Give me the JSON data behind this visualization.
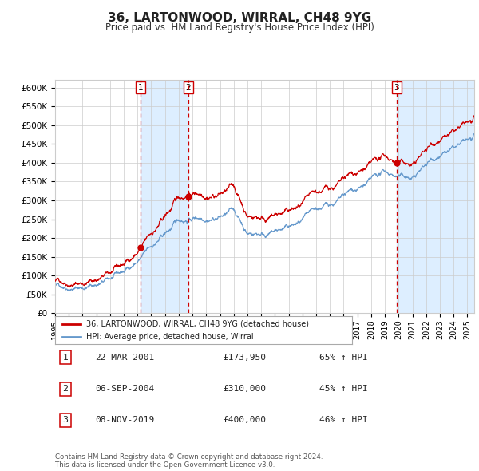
{
  "title": "36, LARTONWOOD, WIRRAL, CH48 9YG",
  "subtitle": "Price paid vs. HM Land Registry's House Price Index (HPI)",
  "title_fontsize": 11,
  "subtitle_fontsize": 8.5,
  "purchases": [
    {
      "num": 1,
      "date_str": "22-MAR-2001",
      "price": 173950,
      "pct": "65%",
      "x_year": 2001.22
    },
    {
      "num": 2,
      "date_str": "06-SEP-2004",
      "price": 310000,
      "pct": "45%",
      "x_year": 2004.68
    },
    {
      "num": 3,
      "date_str": "08-NOV-2019",
      "price": 400000,
      "pct": "46%",
      "x_year": 2019.85
    }
  ],
  "legend_property": "36, LARTONWOOD, WIRRAL, CH48 9YG (detached house)",
  "legend_hpi": "HPI: Average price, detached house, Wirral",
  "footer": "Contains HM Land Registry data © Crown copyright and database right 2024.\nThis data is licensed under the Open Government Licence v3.0.",
  "ylim": [
    0,
    620000
  ],
  "xlim_start": 1995.0,
  "xlim_end": 2025.5,
  "red_color": "#cc0000",
  "blue_color": "#6699cc",
  "marker_color": "#cc0000",
  "shading_color": "#ddeeff",
  "grid_color": "#cccccc",
  "background_color": "#ffffff",
  "dashed_line_color": "#cc0000"
}
